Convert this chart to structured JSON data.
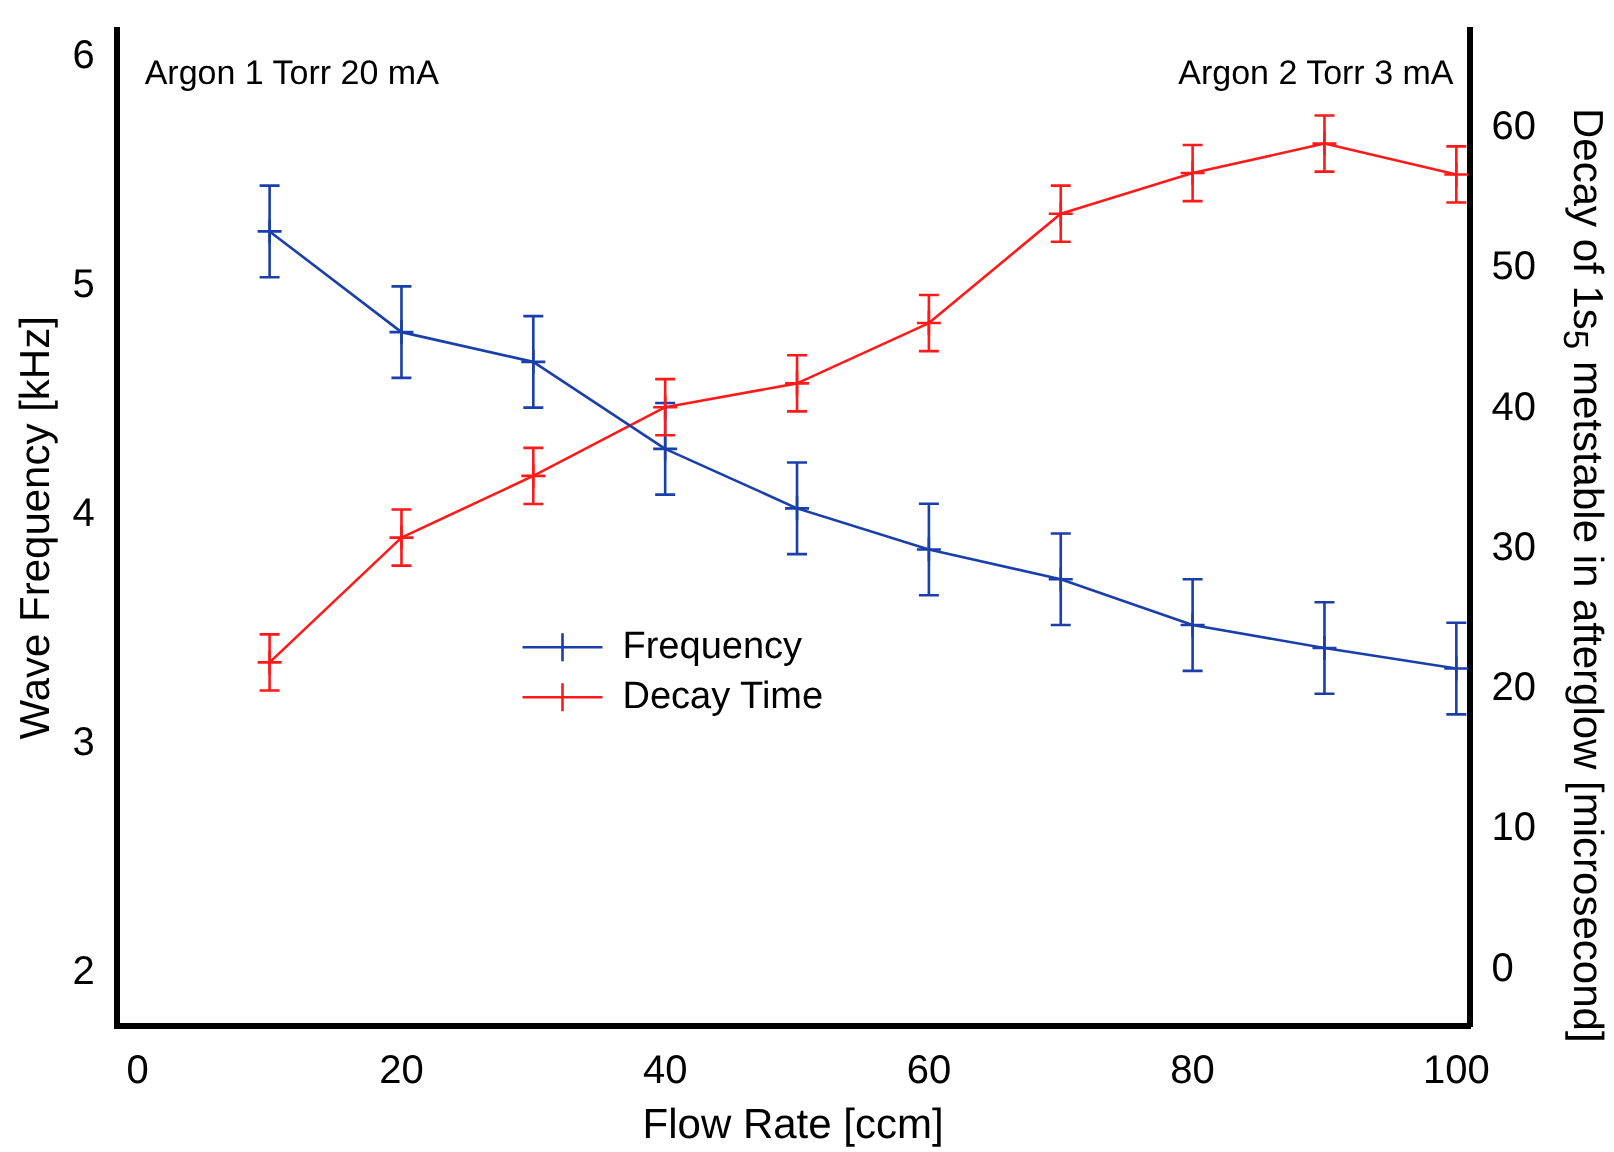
{
  "chart_data": {
    "type": "line",
    "xlabel": "Flow Rate [ccm]",
    "ylabel": "Wave Frequency [kHz]",
    "y2label": "Decay of 1s$_{5}$ metstable in afterglow [microsecond]",
    "annotations": [
      "Argon 1 Torr 20 mA",
      "Argon 2 Torr 3 mA"
    ],
    "x": [
      10,
      20,
      30,
      40,
      50,
      60,
      70,
      80,
      90,
      100
    ],
    "series": [
      {
        "name": "Frequency",
        "color": "#1a3faa",
        "values": [
          5.24,
          4.8,
          4.67,
          4.29,
          4.03,
          3.85,
          3.72,
          3.52,
          3.42,
          3.33
        ],
        "errors": [
          0.2,
          0.2,
          0.2,
          0.2,
          0.2,
          0.2,
          0.2,
          0.2,
          0.2,
          0.2
        ]
      },
      {
        "name": "Decay Time",
        "color": "#ff1a1a",
        "axis": "y2",
        "values": [
          21.9,
          30.8,
          35.2,
          40.1,
          41.8,
          46.1,
          53.9,
          56.8,
          58.9,
          56.7
        ],
        "errors": [
          2,
          2,
          2,
          2,
          2,
          2,
          2,
          2,
          2,
          2
        ]
      }
    ],
    "xlim": [
      -1.6,
      101
    ],
    "xticks": [
      0,
      20,
      40,
      60,
      80,
      100
    ],
    "ylim": [
      1.77,
      6.12
    ],
    "yticks": [
      2,
      3,
      4,
      5,
      6
    ],
    "y2lim": [
      -4,
      67
    ],
    "y2ticks": [
      0,
      10,
      20,
      30,
      40,
      50,
      60
    ],
    "grid": false,
    "legend": "bottom left",
    "marker": "cross",
    "line_style": "solid"
  }
}
